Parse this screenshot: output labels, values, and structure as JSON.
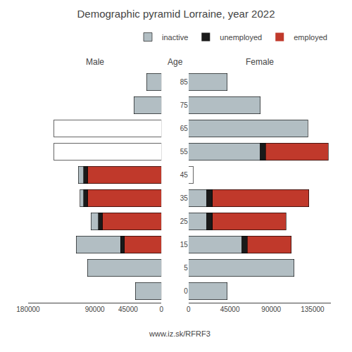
{
  "chart_data": [
    {
      "type": "bar",
      "orientation": "horizontal",
      "stacked": true,
      "title": "Demographic pyramid Lorraine, year 2022",
      "subtitle": "Male",
      "annotations": [
        "www.iz.sk/RFRF3"
      ],
      "categories": [
        "85",
        "75",
        "65",
        "55",
        "45",
        "35",
        "25",
        "15",
        "5",
        "0"
      ],
      "series": [
        {
          "name": "employed",
          "color": "#c0392b",
          "values": [
            0,
            0,
            0,
            0,
            100000,
            100000,
            80000,
            50000,
            0,
            0
          ]
        },
        {
          "name": "unemployed",
          "color": "#1a1a1a",
          "values": [
            0,
            0,
            0,
            0,
            5000,
            5000,
            5000,
            5000,
            0,
            0
          ]
        },
        {
          "name": "inactive",
          "color": "#b2bec3",
          "colors": [
            "#b2bec3",
            "#b2bec3",
            "#ffffff",
            "#ffffff",
            "#b2bec3",
            "#b2bec3",
            "#b2bec3",
            "#b2bec3",
            "#b2bec3",
            "#b2bec3"
          ],
          "values": [
            20000,
            37000,
            145000,
            145000,
            7000,
            5000,
            10000,
            60000,
            100000,
            35000
          ]
        }
      ],
      "xlim": [
        180000,
        0
      ],
      "xticks": [
        180000,
        90000,
        45000,
        0
      ],
      "grid": false,
      "tick_labels": "x"
    },
    {
      "type": "bar",
      "orientation": "horizontal",
      "stacked": true,
      "subtitle": "Female",
      "ylabel": "Age",
      "categories": [
        "85",
        "75",
        "65",
        "55",
        "45",
        "35",
        "25",
        "15",
        "5",
        "0"
      ],
      "series": [
        {
          "name": "inactive",
          "color": "#b2bec3",
          "colors": [
            "#b2bec3",
            "#b2bec3",
            "#b2bec3",
            "#b2bec3",
            "#ffffff",
            "#b2bec3",
            "#b2bec3",
            "#b2bec3",
            "#b2bec3",
            "#b2bec3"
          ],
          "values": [
            42000,
            78000,
            130000,
            78000,
            5000,
            20000,
            20000,
            58000,
            115000,
            42000
          ]
        },
        {
          "name": "unemployed",
          "color": "#1a1a1a",
          "values": [
            0,
            0,
            0,
            6000,
            0,
            6000,
            6000,
            6000,
            0,
            0
          ]
        },
        {
          "name": "employed",
          "color": "#c0392b",
          "values": [
            0,
            0,
            0,
            68000,
            0,
            105000,
            80000,
            48000,
            0,
            0
          ]
        }
      ],
      "xlim": [
        0,
        155000
      ],
      "xticks": [
        0,
        45000,
        90000,
        135000
      ],
      "grid": false,
      "legend": "upper right"
    }
  ]
}
